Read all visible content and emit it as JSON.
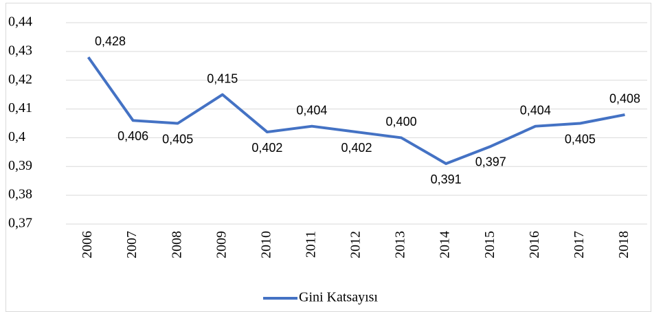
{
  "chart_data": {
    "type": "line",
    "categories": [
      "2006",
      "2007",
      "2008",
      "2009",
      "2010",
      "2011",
      "2012",
      "2013",
      "2014",
      "2015",
      "2016",
      "2017",
      "2018"
    ],
    "series": [
      {
        "name": "Gini Katsayısı",
        "color": "#4472c4",
        "values": [
          0.428,
          0.406,
          0.405,
          0.415,
          0.402,
          0.404,
          0.402,
          0.4,
          0.391,
          0.397,
          0.404,
          0.405,
          0.408
        ],
        "value_labels": [
          "0,428",
          "0,406",
          "0,405",
          "0,415",
          "0,402",
          "0,404",
          "0,402",
          "0,400",
          "0,391",
          "0,397",
          "0,404",
          "0,405",
          "0,408"
        ]
      }
    ],
    "ylim": [
      0.37,
      0.44
    ],
    "yticks": [
      {
        "value": 0.37,
        "label": "0,37"
      },
      {
        "value": 0.38,
        "label": "0,38"
      },
      {
        "value": 0.39,
        "label": "0,39"
      },
      {
        "value": 0.4,
        "label": "0,4"
      },
      {
        "value": 0.41,
        "label": "0,41"
      },
      {
        "value": 0.42,
        "label": "0,42"
      },
      {
        "value": 0.43,
        "label": "0,43"
      },
      {
        "value": 0.44,
        "label": "0,44"
      }
    ],
    "grid": true,
    "legend": "bottom"
  }
}
